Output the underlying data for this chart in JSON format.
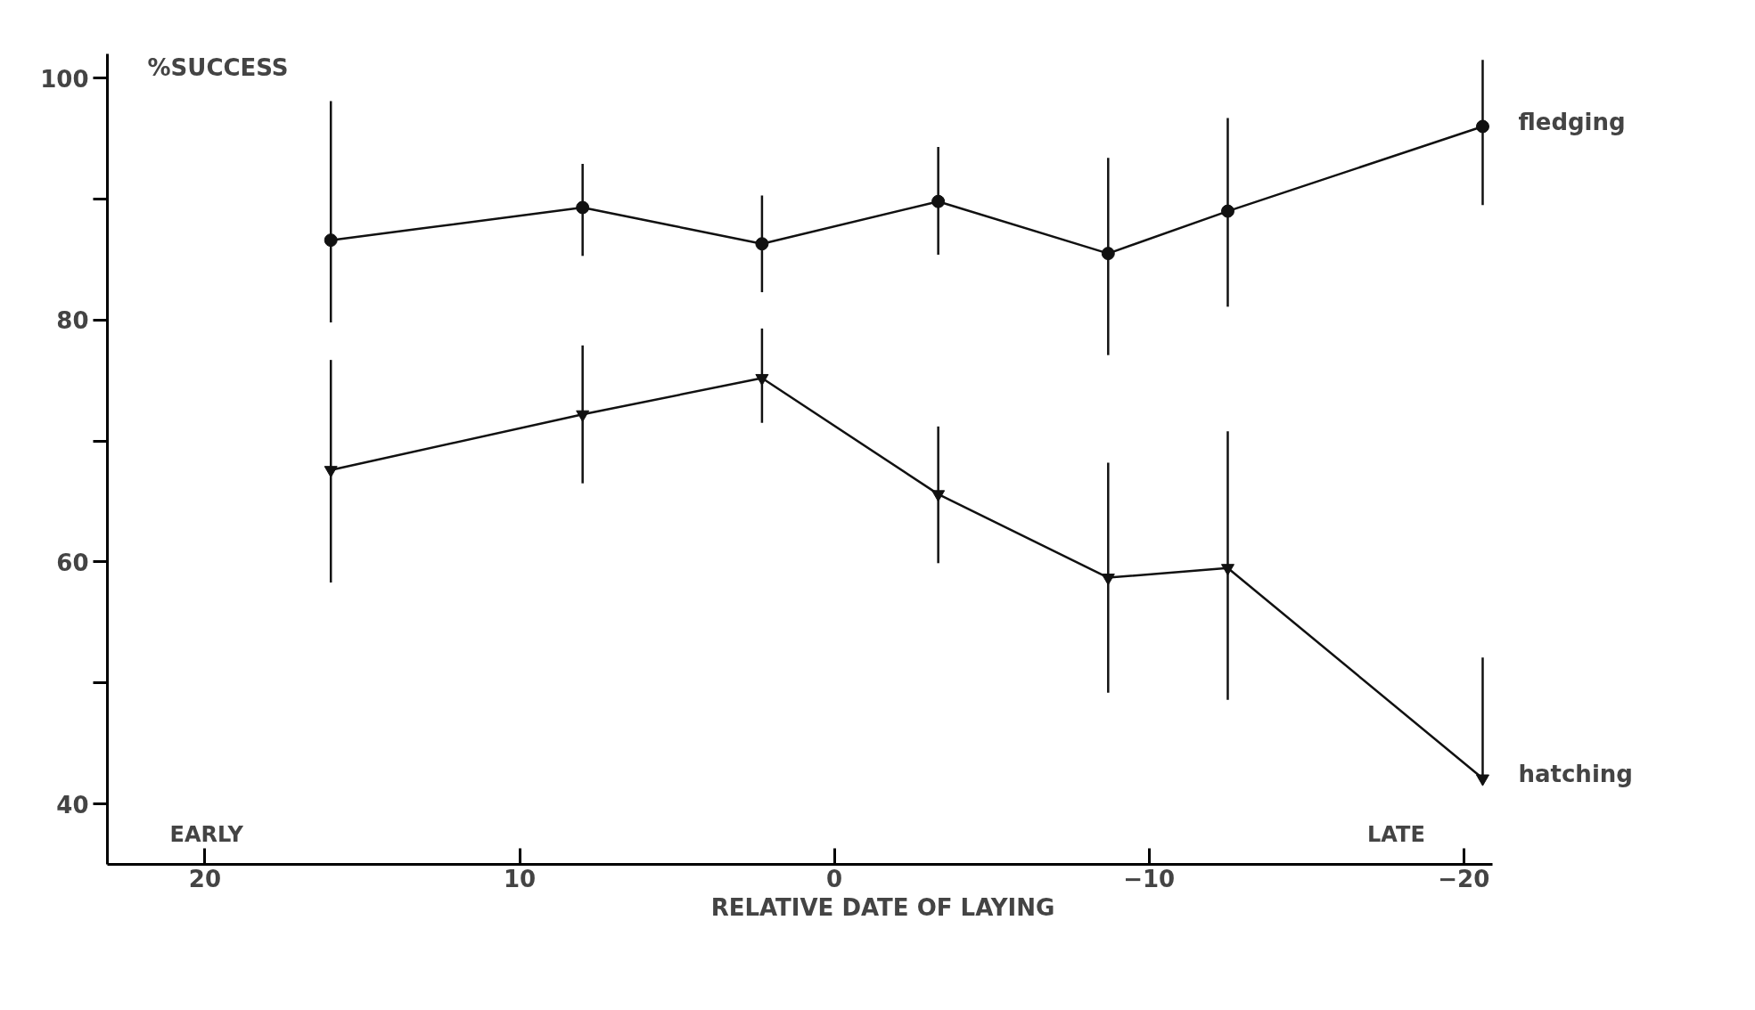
{
  "chart_data": {
    "type": "line",
    "xlabel": "RELATIVE DATE OF LAYING",
    "ylabel": "%SUCCESS",
    "annotations": [
      "EARLY",
      "LATE"
    ],
    "x": [
      16.0,
      8.0,
      2.3,
      -3.3,
      -8.7,
      -12.5,
      -20.6
    ],
    "series": [
      {
        "name": "fledging",
        "color": "#111111",
        "marker": "circle",
        "values": [
          86.6,
          89.3,
          86.3,
          89.8,
          85.5,
          89.0,
          96.0
        ],
        "errors": [
          [
            79.8,
            98.1
          ],
          [
            85.3,
            92.9
          ],
          [
            82.3,
            90.3
          ],
          [
            85.4,
            94.3
          ],
          [
            77.1,
            93.4
          ],
          [
            81.1,
            96.7
          ],
          [
            89.5,
            101.5
          ]
        ]
      },
      {
        "name": "hatching",
        "color": "#111111",
        "marker": "triangle",
        "values": [
          67.6,
          72.2,
          75.2,
          65.6,
          58.7,
          59.5,
          42.1
        ],
        "errors": [
          [
            58.3,
            76.7
          ],
          [
            66.5,
            77.9
          ],
          [
            71.5,
            79.3
          ],
          [
            59.9,
            71.2
          ],
          [
            49.2,
            68.2
          ],
          [
            48.6,
            70.8
          ],
          [
            42.1,
            52.1
          ]
        ]
      }
    ],
    "xlim": [
      23.1,
      -20.9
    ],
    "ylim": [
      35,
      102
    ],
    "xticks": [
      20,
      10,
      0,
      -10,
      -20
    ],
    "yticks": [
      40,
      {
        "value": 50,
        "label": null
      },
      60,
      {
        "value": 70,
        "label": null
      },
      80,
      {
        "value": 90,
        "label": null
      },
      100
    ],
    "grid": false,
    "line_style": "solid"
  }
}
